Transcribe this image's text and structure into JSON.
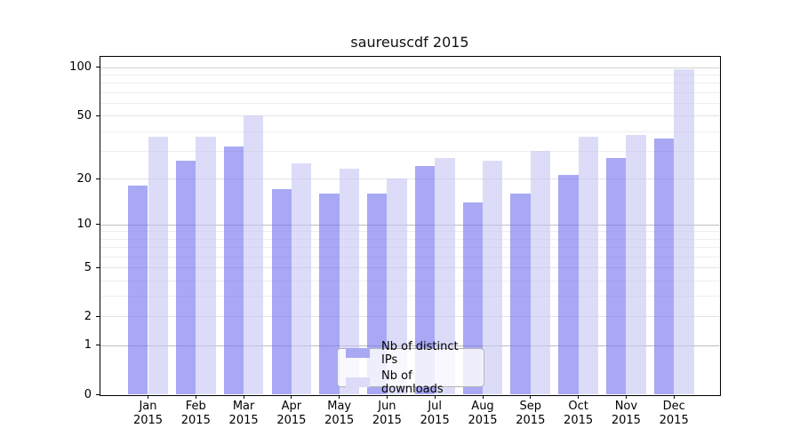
{
  "title": "saureuscdf 2015",
  "legend": {
    "items": [
      {
        "label": "Nb of distinct IPs",
        "series": "ips"
      },
      {
        "label": "Nb of downloads",
        "series": "downloads"
      }
    ]
  },
  "colors": {
    "ips_bar_rgba": "rgba(110,110,238,0.6)",
    "downloads_bar_rgba": "rgba(197,197,245,0.6)",
    "ips_swatch": "#a8a8f3",
    "downloads_swatch": "#dcdcf8",
    "grid_strong": "#bdbdbd",
    "grid_100": "#d4d4d4",
    "grid_mid": "#e3e3e3",
    "grid_minor": "#eeeeee",
    "axis": "#000000"
  },
  "axes": {
    "y_tick_labels": [
      "100",
      "50",
      "20",
      "10",
      "5",
      "2",
      "1",
      "0"
    ],
    "x_year_line": "2015"
  },
  "chart_data": {
    "type": "bar",
    "title": "saureuscdf 2015",
    "categories": [
      "Jan 2015",
      "Feb 2015",
      "Mar 2015",
      "Apr 2015",
      "May 2015",
      "Jun 2015",
      "Jul 2015",
      "Aug 2015",
      "Sep 2015",
      "Oct 2015",
      "Nov 2015",
      "Dec 2015"
    ],
    "series": [
      {
        "name": "Nb of distinct IPs",
        "values": [
          18,
          26,
          32,
          17,
          16,
          16,
          24,
          14,
          16,
          21,
          27,
          36
        ]
      },
      {
        "name": "Nb of downloads",
        "values": [
          37,
          37,
          50,
          25,
          23,
          20,
          27,
          26,
          30,
          37,
          38,
          97
        ]
      }
    ],
    "yscale": "log1p",
    "y_ticks": [
      0,
      1,
      2,
      5,
      10,
      20,
      50,
      100
    ],
    "minor_gridlines": [
      3,
      4,
      6,
      7,
      8,
      9,
      30,
      40,
      60,
      70,
      80,
      90
    ],
    "ylim": [
      0,
      117
    ],
    "grid": true,
    "legend_position": "lower center",
    "xlabel": "",
    "ylabel": ""
  }
}
